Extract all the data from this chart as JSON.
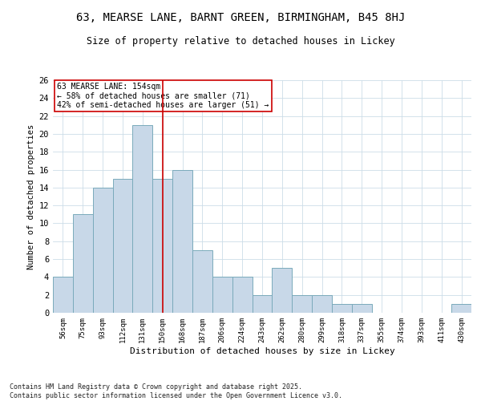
{
  "title_line1": "63, MEARSE LANE, BARNT GREEN, BIRMINGHAM, B45 8HJ",
  "title_line2": "Size of property relative to detached houses in Lickey",
  "xlabel": "Distribution of detached houses by size in Lickey",
  "ylabel": "Number of detached properties",
  "categories": [
    "56sqm",
    "75sqm",
    "93sqm",
    "112sqm",
    "131sqm",
    "150sqm",
    "168sqm",
    "187sqm",
    "206sqm",
    "224sqm",
    "243sqm",
    "262sqm",
    "280sqm",
    "299sqm",
    "318sqm",
    "337sqm",
    "355sqm",
    "374sqm",
    "393sqm",
    "411sqm",
    "430sqm"
  ],
  "values": [
    4,
    11,
    14,
    15,
    21,
    15,
    16,
    7,
    4,
    4,
    2,
    5,
    2,
    2,
    1,
    1,
    0,
    0,
    0,
    0,
    1
  ],
  "bar_color": "#c8d8e8",
  "bar_edge_color": "#7aaabb",
  "vline_x_index": 5,
  "vline_color": "#cc0000",
  "annotation_text": "63 MEARSE LANE: 154sqm\n← 58% of detached houses are smaller (71)\n42% of semi-detached houses are larger (51) →",
  "annotation_box_color": "#ffffff",
  "annotation_box_edge": "#cc0000",
  "ylim": [
    0,
    26
  ],
  "yticks": [
    0,
    2,
    4,
    6,
    8,
    10,
    12,
    14,
    16,
    18,
    20,
    22,
    24,
    26
  ],
  "background_color": "#ffffff",
  "grid_color": "#ccdde8",
  "footnote": "Contains HM Land Registry data © Crown copyright and database right 2025.\nContains public sector information licensed under the Open Government Licence v3.0."
}
